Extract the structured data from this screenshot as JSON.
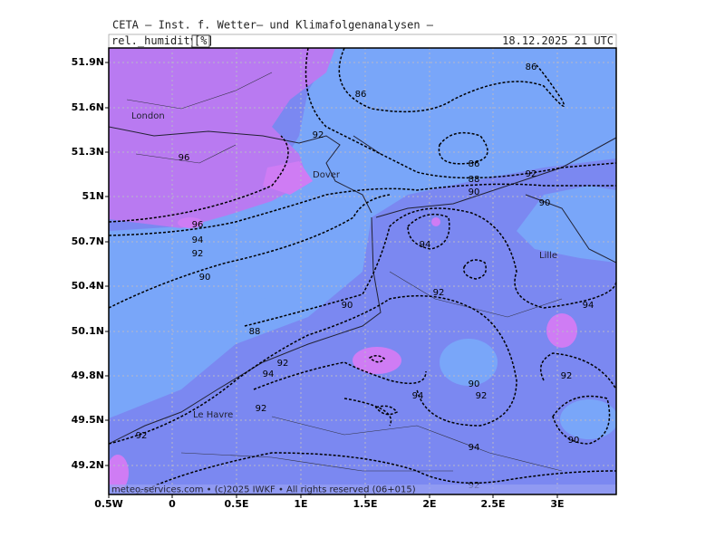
{
  "header": {
    "title": "CETA — Inst. f. Wetter— und Klimafolgenanalysen —",
    "parameter": "rel._humidity_",
    "unit": "[%]",
    "valid_time": "18.12.2025 21 UTC"
  },
  "footer": "meteo-services.com • (c)2025 IWKF • All rights reserved (06+015)",
  "longitude_ticks": [
    "0.5W",
    "0",
    "0.5E",
    "1E",
    "1.5E",
    "2E",
    "2.5E",
    "3E"
  ],
  "latitude_ticks": [
    "51.9N",
    "51.6N",
    "51.3N",
    "51N",
    "50.7N",
    "50.4N",
    "50.1N",
    "49.8N",
    "49.5N",
    "49.2N"
  ],
  "cities": [
    "London",
    "Dover",
    "Lille",
    "Le Havre"
  ],
  "contour_labels": [
    "86",
    "86",
    "92",
    "86",
    "88",
    "90",
    "92",
    "90",
    "96",
    "96",
    "94",
    "92",
    "90",
    "94",
    "92",
    "90",
    "88",
    "92",
    "94",
    "94",
    "92",
    "90",
    "92",
    "94",
    "92",
    "92",
    "90",
    "94",
    "92"
  ]
}
